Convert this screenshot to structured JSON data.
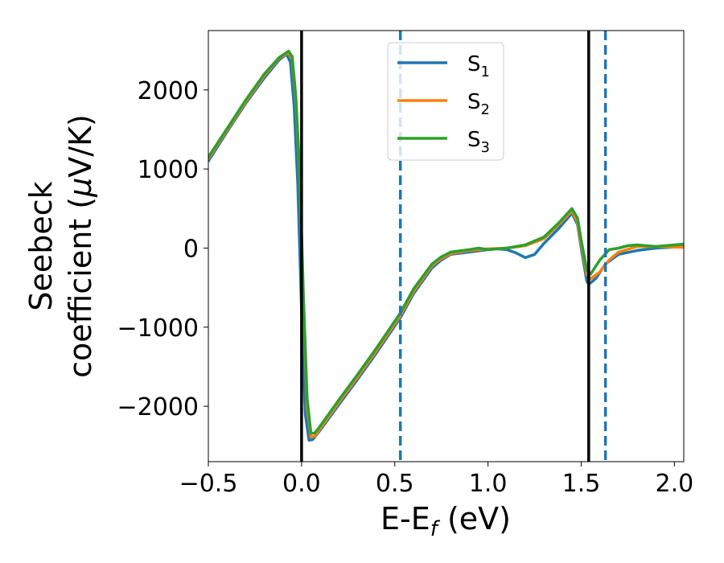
{
  "chart_data": {
    "type": "line",
    "title": "",
    "xlabel": {
      "main": "E-E",
      "sub": "f",
      "suffix": " (eV)"
    },
    "ylabel_line1": "Seebeck",
    "ylabel_line2": {
      "main": "coefficient  (",
      "mu": "μ",
      "suffix": "V/K)"
    },
    "xlim": [
      -0.5,
      2.05
    ],
    "ylim": [
      -2700,
      2750
    ],
    "x_ticks": [
      -0.5,
      0.0,
      0.5,
      1.0,
      1.5,
      2.0
    ],
    "x_tick_labels": [
      "−0.5",
      "0.0",
      "0.5",
      "1.0",
      "1.5",
      "2.0"
    ],
    "y_ticks": [
      -2000,
      -1000,
      0,
      1000,
      2000
    ],
    "y_tick_labels": [
      "−2000",
      "−1000",
      "0",
      "1000",
      "2000"
    ],
    "legend": {
      "position": "upper-center"
    },
    "vertical_lines": [
      {
        "x": 0.0,
        "style": "solid",
        "color": "#000000"
      },
      {
        "x": 1.54,
        "style": "solid",
        "color": "#000000"
      },
      {
        "x": 0.53,
        "style": "dashed",
        "color": "#1f77b4"
      },
      {
        "x": 1.63,
        "style": "dashed",
        "color": "#1f77b4"
      }
    ],
    "series": [
      {
        "name": "S",
        "sub": "1",
        "color": "#1f77b4",
        "points": [
          [
            -0.5,
            1100
          ],
          [
            -0.4,
            1470
          ],
          [
            -0.3,
            1830
          ],
          [
            -0.2,
            2150
          ],
          [
            -0.12,
            2380
          ],
          [
            -0.08,
            2450
          ],
          [
            -0.06,
            2350
          ],
          [
            -0.04,
            1800
          ],
          [
            -0.02,
            800
          ],
          [
            0.0,
            -800
          ],
          [
            0.02,
            -2100
          ],
          [
            0.04,
            -2430
          ],
          [
            0.06,
            -2420
          ],
          [
            0.1,
            -2300
          ],
          [
            0.2,
            -1980
          ],
          [
            0.3,
            -1660
          ],
          [
            0.4,
            -1330
          ],
          [
            0.53,
            -880
          ],
          [
            0.6,
            -580
          ],
          [
            0.7,
            -250
          ],
          [
            0.75,
            -150
          ],
          [
            0.8,
            -80
          ],
          [
            0.9,
            -50
          ],
          [
            1.0,
            -20
          ],
          [
            1.05,
            -10
          ],
          [
            1.1,
            -20
          ],
          [
            1.15,
            -60
          ],
          [
            1.2,
            -120
          ],
          [
            1.25,
            -80
          ],
          [
            1.3,
            60
          ],
          [
            1.38,
            250
          ],
          [
            1.45,
            440
          ],
          [
            1.48,
            300
          ],
          [
            1.5,
            0
          ],
          [
            1.53,
            -420
          ],
          [
            1.54,
            -460
          ],
          [
            1.58,
            -380
          ],
          [
            1.63,
            -200
          ],
          [
            1.7,
            -80
          ],
          [
            1.8,
            -30
          ],
          [
            1.9,
            0
          ],
          [
            2.05,
            20
          ]
        ]
      },
      {
        "name": "S",
        "sub": "2",
        "color": "#ff7f0e",
        "points": [
          [
            -0.5,
            1130
          ],
          [
            -0.4,
            1490
          ],
          [
            -0.3,
            1850
          ],
          [
            -0.2,
            2180
          ],
          [
            -0.12,
            2400
          ],
          [
            -0.07,
            2470
          ],
          [
            -0.05,
            2380
          ],
          [
            -0.03,
            1850
          ],
          [
            -0.01,
            900
          ],
          [
            0.01,
            -700
          ],
          [
            0.03,
            -2000
          ],
          [
            0.05,
            -2390
          ],
          [
            0.07,
            -2380
          ],
          [
            0.1,
            -2280
          ],
          [
            0.2,
            -1950
          ],
          [
            0.3,
            -1630
          ],
          [
            0.4,
            -1300
          ],
          [
            0.53,
            -850
          ],
          [
            0.6,
            -550
          ],
          [
            0.7,
            -220
          ],
          [
            0.75,
            -130
          ],
          [
            0.8,
            -70
          ],
          [
            0.9,
            -30
          ],
          [
            1.0,
            -10
          ],
          [
            1.1,
            0
          ],
          [
            1.2,
            30
          ],
          [
            1.3,
            120
          ],
          [
            1.38,
            300
          ],
          [
            1.45,
            470
          ],
          [
            1.48,
            330
          ],
          [
            1.5,
            50
          ],
          [
            1.53,
            -330
          ],
          [
            1.55,
            -390
          ],
          [
            1.6,
            -300
          ],
          [
            1.65,
            -150
          ],
          [
            1.7,
            -50
          ],
          [
            1.8,
            20
          ],
          [
            1.9,
            20
          ],
          [
            2.05,
            10
          ]
        ]
      },
      {
        "name": "S",
        "sub": "3",
        "color": "#2ca02c",
        "points": [
          [
            -0.5,
            1150
          ],
          [
            -0.4,
            1510
          ],
          [
            -0.3,
            1870
          ],
          [
            -0.2,
            2200
          ],
          [
            -0.12,
            2410
          ],
          [
            -0.07,
            2490
          ],
          [
            -0.05,
            2420
          ],
          [
            -0.03,
            1900
          ],
          [
            -0.01,
            950
          ],
          [
            0.01,
            -600
          ],
          [
            0.03,
            -1900
          ],
          [
            0.05,
            -2340
          ],
          [
            0.07,
            -2340
          ],
          [
            0.1,
            -2250
          ],
          [
            0.2,
            -1920
          ],
          [
            0.3,
            -1600
          ],
          [
            0.4,
            -1270
          ],
          [
            0.53,
            -820
          ],
          [
            0.6,
            -520
          ],
          [
            0.7,
            -200
          ],
          [
            0.75,
            -110
          ],
          [
            0.8,
            -50
          ],
          [
            0.9,
            -20
          ],
          [
            0.95,
            0
          ],
          [
            1.0,
            -20
          ],
          [
            1.1,
            0
          ],
          [
            1.2,
            40
          ],
          [
            1.3,
            140
          ],
          [
            1.38,
            320
          ],
          [
            1.45,
            500
          ],
          [
            1.48,
            380
          ],
          [
            1.5,
            100
          ],
          [
            1.53,
            -280
          ],
          [
            1.55,
            -330
          ],
          [
            1.6,
            -150
          ],
          [
            1.65,
            -20
          ],
          [
            1.7,
            0
          ],
          [
            1.75,
            30
          ],
          [
            1.8,
            40
          ],
          [
            1.9,
            20
          ],
          [
            2.05,
            50
          ]
        ]
      }
    ]
  }
}
